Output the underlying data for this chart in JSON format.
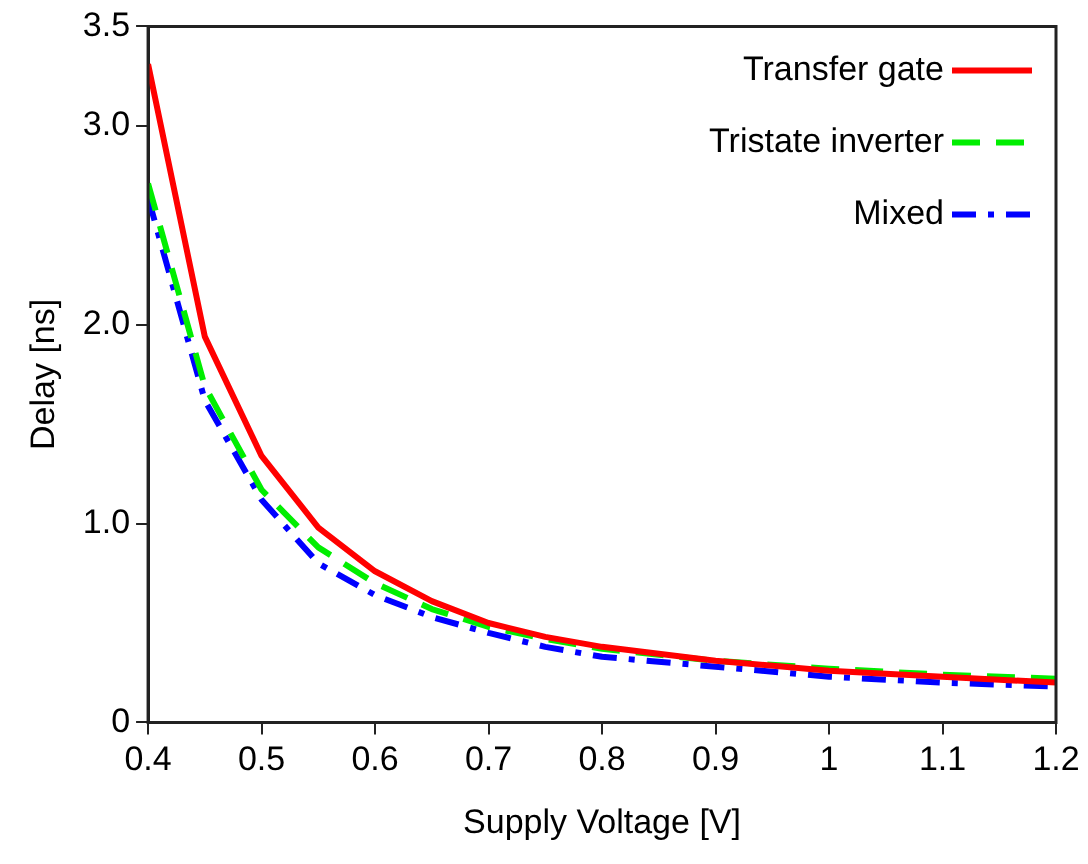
{
  "chart_data": {
    "type": "line",
    "xlabel": "Supply Voltage [V]",
    "ylabel": "Delay [ns]",
    "x": [
      0.4,
      0.45,
      0.5,
      0.55,
      0.6,
      0.65,
      0.7,
      0.75,
      0.8,
      0.9,
      1.0,
      1.1,
      1.2
    ],
    "xlim": [
      0.4,
      1.2
    ],
    "xticks": [
      0.4,
      0.5,
      0.6,
      0.7,
      0.8,
      0.9,
      1,
      1.1,
      1.2
    ],
    "ylim": [
      0,
      3.5
    ],
    "yticks": [
      0,
      {
        "value": 1,
        "label": "1.0"
      },
      {
        "value": 2,
        "label": "2.0"
      },
      {
        "value": 3,
        "label": "3.0"
      },
      {
        "value": 3.5,
        "label": "3.5"
      }
    ],
    "grid": false,
    "legend": "top right",
    "marker": "none",
    "series": [
      {
        "name": "Transfer gate",
        "color": "#ff0000",
        "line_style": "solid",
        "values": [
          3.31,
          1.94,
          1.34,
          0.98,
          0.76,
          0.61,
          0.5,
          0.43,
          0.38,
          0.31,
          0.26,
          0.23,
          0.2
        ]
      },
      {
        "name": "Tristate inverter",
        "color": "#00ee00",
        "line_style": "dashed",
        "values": [
          2.71,
          1.69,
          1.17,
          0.88,
          0.7,
          0.57,
          0.48,
          0.42,
          0.37,
          0.31,
          0.27,
          0.24,
          0.22
        ]
      },
      {
        "name": "Mixed",
        "color": "#0000ff",
        "line_style": "dashdot",
        "values": [
          2.64,
          1.62,
          1.12,
          0.8,
          0.64,
          0.53,
          0.45,
          0.38,
          0.33,
          0.28,
          0.23,
          0.2,
          0.18
        ]
      }
    ]
  }
}
